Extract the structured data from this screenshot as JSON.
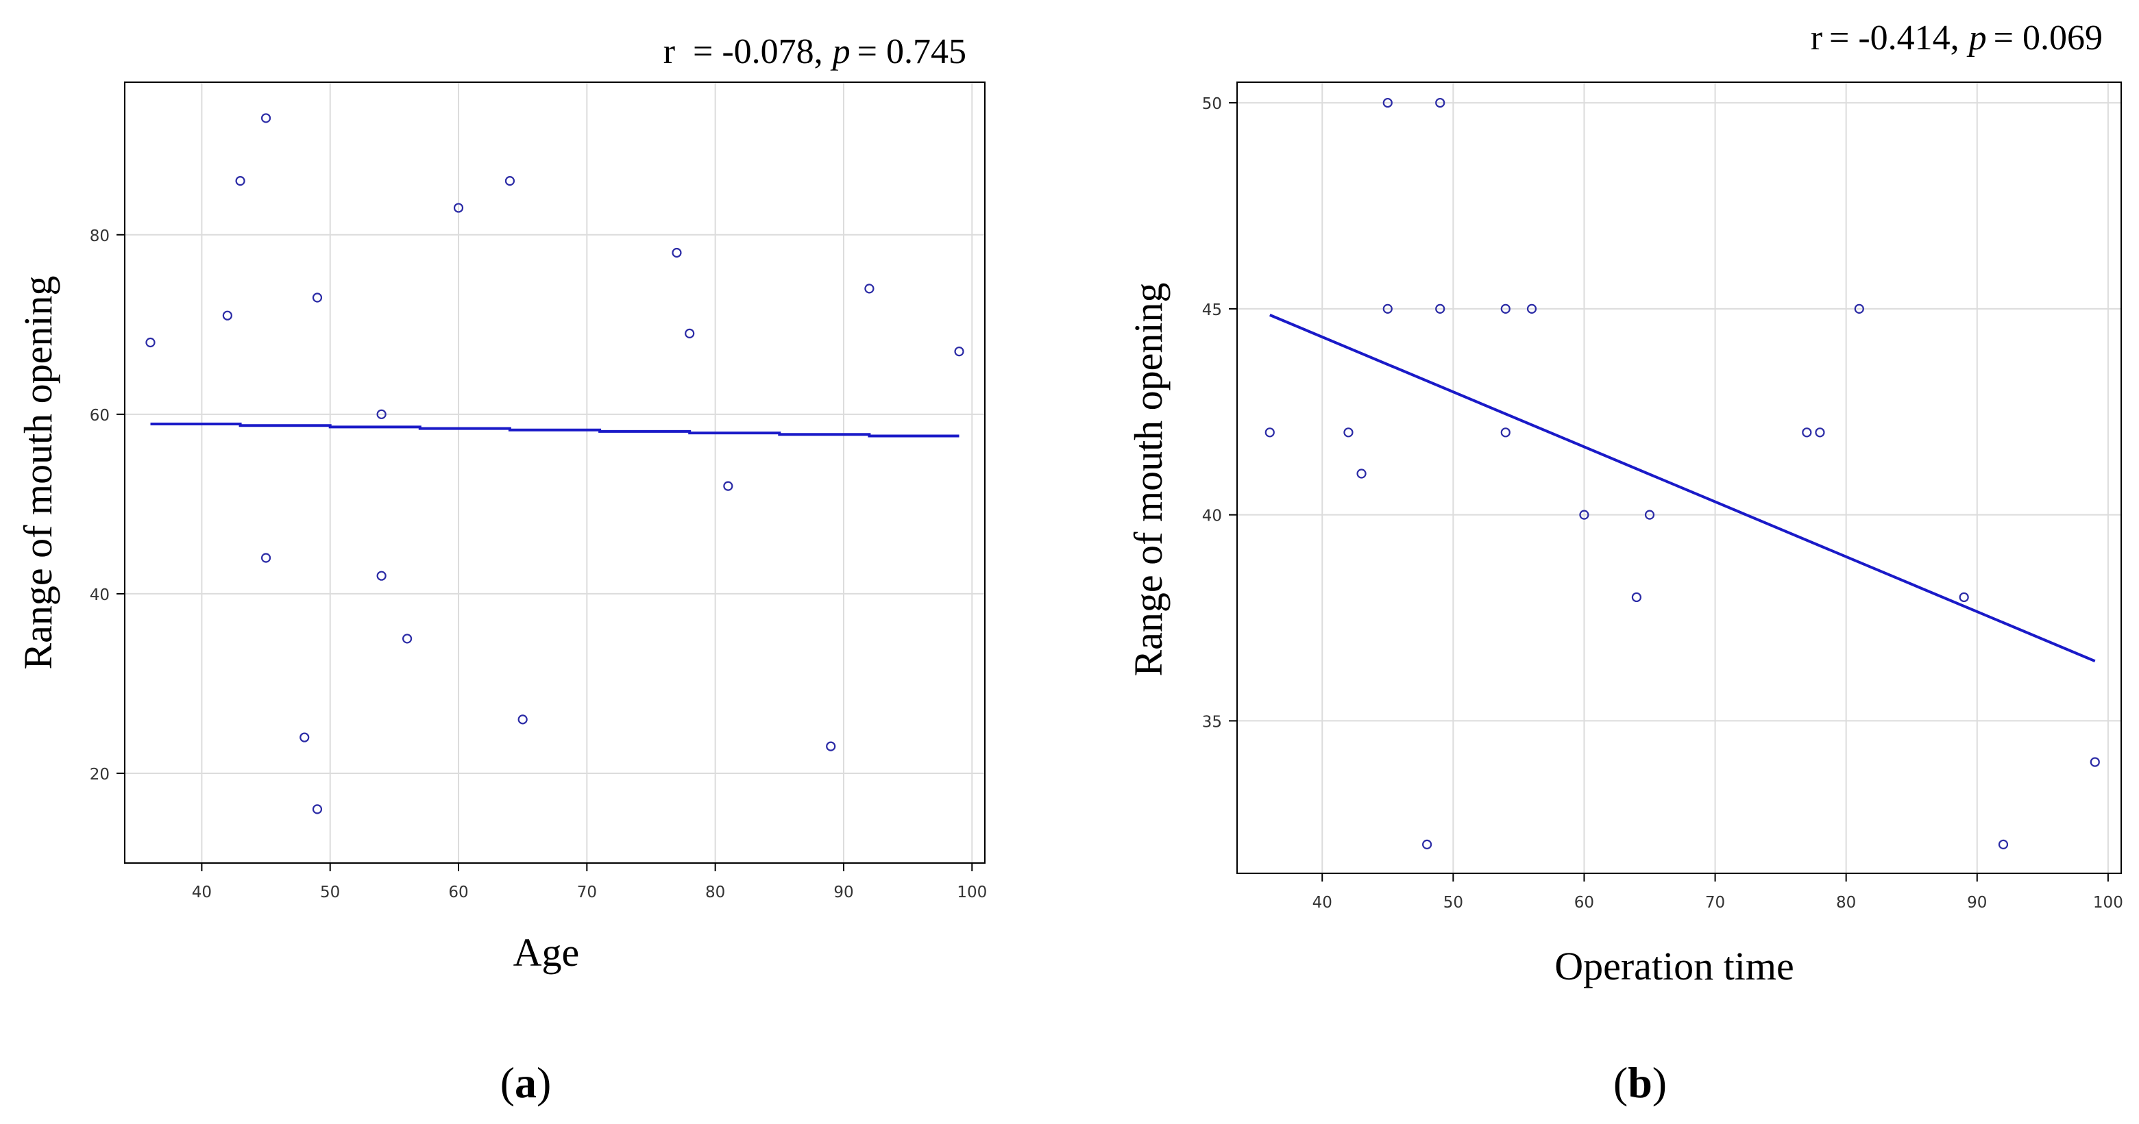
{
  "colors": {
    "point": "#2b2ba6",
    "line": "#1a1ac8",
    "grid": "#dcdcdc",
    "frame": "#000000"
  },
  "chart_data": [
    {
      "type": "scatter",
      "id": "a",
      "caption_label": "a",
      "xlabel": "Age",
      "ylabel": "Range of mouth opening",
      "stat": {
        "r_label": "r",
        "r_value": "= -0.078,",
        "p_label": "p",
        "p_value": "= 0.745"
      },
      "xlim": [
        34,
        101
      ],
      "ylim": [
        10,
        97
      ],
      "xticks": [
        40,
        50,
        60,
        70,
        80,
        90,
        100
      ],
      "yticks": [
        20,
        40,
        60,
        80
      ],
      "points": [
        [
          36,
          68
        ],
        [
          42,
          71
        ],
        [
          43,
          86
        ],
        [
          45,
          93
        ],
        [
          45,
          44
        ],
        [
          48,
          24
        ],
        [
          49,
          73
        ],
        [
          49,
          16
        ],
        [
          54,
          60
        ],
        [
          54,
          42
        ],
        [
          56,
          35
        ],
        [
          60,
          83
        ],
        [
          64,
          86
        ],
        [
          65,
          26
        ],
        [
          77,
          78
        ],
        [
          78,
          69
        ],
        [
          81,
          52
        ],
        [
          89,
          23
        ],
        [
          92,
          74
        ],
        [
          99,
          67
        ]
      ],
      "fit": {
        "x": [
          36,
          99
        ],
        "y": [
          59,
          57.5
        ],
        "style": "step"
      }
    },
    {
      "type": "scatter",
      "id": "b",
      "caption_label": "b",
      "xlabel": "Operation time",
      "ylabel": "Range of mouth opening",
      "stat": {
        "r_label": "r",
        "r_value": "= -0.414,",
        "p_label": "p",
        "p_value": "= 0.069"
      },
      "xlim": [
        33.5,
        101
      ],
      "ylim": [
        31.3,
        50.5
      ],
      "xticks": [
        40,
        50,
        60,
        70,
        80,
        90,
        100
      ],
      "yticks": [
        35,
        40,
        45,
        50
      ],
      "points": [
        [
          36,
          42
        ],
        [
          42,
          42
        ],
        [
          43,
          41
        ],
        [
          45,
          50
        ],
        [
          45,
          45
        ],
        [
          48,
          32
        ],
        [
          49,
          50
        ],
        [
          49,
          45
        ],
        [
          54,
          45
        ],
        [
          54,
          42
        ],
        [
          56,
          45
        ],
        [
          60,
          40
        ],
        [
          64,
          38
        ],
        [
          65,
          40
        ],
        [
          77,
          42
        ],
        [
          78,
          42
        ],
        [
          81,
          45
        ],
        [
          89,
          38
        ],
        [
          92,
          32
        ],
        [
          99,
          34
        ]
      ],
      "fit": {
        "x": [
          36,
          99
        ],
        "y": [
          44.85,
          36.45
        ],
        "style": "straight"
      }
    }
  ]
}
